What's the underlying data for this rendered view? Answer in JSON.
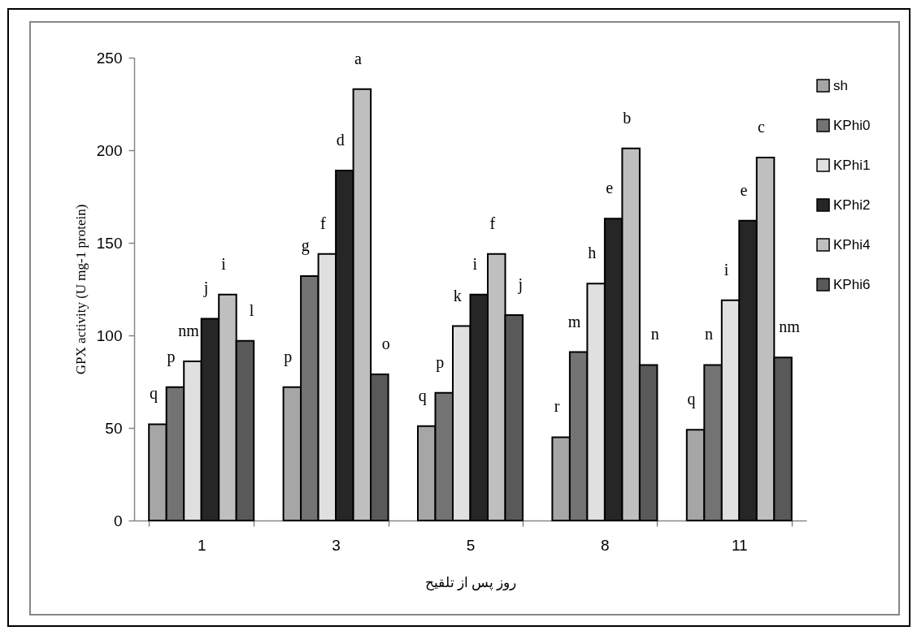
{
  "chart_data": {
    "type": "bar",
    "xlabel": "روز پس از تلقیح",
    "ylabel": "GPX activity (U mg-1 protein)",
    "categories": [
      "1",
      "3",
      "5",
      "8",
      "11"
    ],
    "series": [
      {
        "name": "sh",
        "color": "#a6a6a6",
        "values": [
          52,
          72,
          51,
          45,
          49
        ],
        "value_labels": [
          "q",
          "p",
          "q",
          "r",
          "q"
        ]
      },
      {
        "name": "KPhi0",
        "color": "#737373",
        "values": [
          72,
          132,
          69,
          91,
          84
        ],
        "value_labels": [
          "p",
          "g",
          "p",
          "m",
          "n"
        ]
      },
      {
        "name": "KPhi1",
        "color": "#e0e0e0",
        "values": [
          86,
          144,
          105,
          128,
          119
        ],
        "value_labels": [
          "nm",
          "f",
          "k",
          "h",
          "i"
        ]
      },
      {
        "name": "KPhi2",
        "color": "#262626",
        "values": [
          109,
          189,
          122,
          163,
          162
        ],
        "value_labels": [
          "j",
          "d",
          "i",
          "e",
          "e"
        ]
      },
      {
        "name": "KPhi4",
        "color": "#bfbfbf",
        "values": [
          122,
          233,
          144,
          201,
          196
        ],
        "value_labels": [
          "i",
          "a",
          "f",
          "b",
          "c"
        ]
      },
      {
        "name": "KPhi6",
        "color": "#595959",
        "values": [
          97,
          79,
          111,
          84,
          88
        ],
        "value_labels": [
          "l",
          "o",
          "j",
          "n",
          "nm"
        ]
      }
    ],
    "ylim": [
      0,
      250
    ],
    "yticks": [
      0,
      50,
      100,
      150,
      200,
      250
    ],
    "legend": "right"
  }
}
